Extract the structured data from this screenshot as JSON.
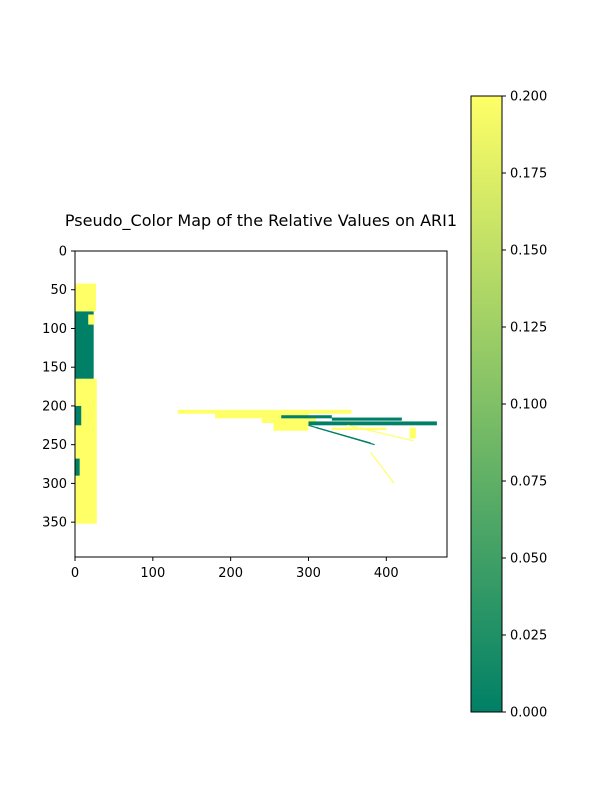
{
  "chart_data": {
    "type": "heatmap",
    "title": "Pseudo_Color Map of the Relative Values on ARI1",
    "xlabel": "",
    "ylabel": "",
    "x_range": [
      0,
      478
    ],
    "y_range": [
      0,
      395
    ],
    "y_inverted": true,
    "x_ticks": [
      "0",
      "100",
      "200",
      "300",
      "400"
    ],
    "x_tick_values": [
      0,
      100,
      200,
      300,
      400
    ],
    "y_ticks": [
      "0",
      "50",
      "100",
      "150",
      "200",
      "250",
      "300",
      "350"
    ],
    "y_tick_values": [
      0,
      50,
      100,
      150,
      200,
      250,
      300,
      350
    ],
    "colormap": "summer",
    "colormap_low": "#008066",
    "colormap_high": "#ffff66",
    "color_range": [
      0.0,
      0.2
    ],
    "colorbar_ticks": [
      "0.000",
      "0.025",
      "0.050",
      "0.075",
      "0.100",
      "0.125",
      "0.150",
      "0.175",
      "0.200"
    ],
    "colorbar_tick_values": [
      0.0,
      0.025,
      0.05,
      0.075,
      0.1,
      0.125,
      0.15,
      0.175,
      0.2
    ],
    "background": "#ffffff",
    "grid": false,
    "regions": [
      {
        "x": [
          0,
          27
        ],
        "y": [
          42,
          78
        ],
        "value": 0.2
      },
      {
        "x": [
          0,
          24
        ],
        "y": [
          78,
          165
        ],
        "value": 0.0
      },
      {
        "x": [
          17,
          25
        ],
        "y": [
          82,
          95
        ],
        "value": 0.2
      },
      {
        "x": [
          0,
          28
        ],
        "y": [
          165,
          352
        ],
        "value": 0.2
      },
      {
        "x": [
          0,
          8
        ],
        "y": [
          200,
          225
        ],
        "value": 0.0
      },
      {
        "x": [
          0,
          6
        ],
        "y": [
          268,
          290
        ],
        "value": 0.0
      },
      {
        "x": [
          132,
          355
        ],
        "y": [
          205,
          210
        ],
        "value": 0.2
      },
      {
        "x": [
          180,
          300
        ],
        "y": [
          210,
          216
        ],
        "value": 0.2
      },
      {
        "x": [
          240,
          310
        ],
        "y": [
          216,
          222
        ],
        "value": 0.2
      },
      {
        "x": [
          255,
          300
        ],
        "y": [
          222,
          232
        ],
        "value": 0.2
      },
      {
        "x": [
          265,
          330
        ],
        "y": [
          212,
          216
        ],
        "value": 0.0
      },
      {
        "x": [
          300,
          465
        ],
        "y": [
          220,
          225
        ],
        "value": 0.0
      },
      {
        "x": [
          330,
          420
        ],
        "y": [
          215,
          219
        ],
        "value": 0.0
      },
      {
        "x": [
          430,
          438
        ],
        "y": [
          228,
          242
        ],
        "value": 0.2
      },
      {
        "x": [
          330,
          400
        ],
        "y": [
          228,
          231
        ],
        "value": 0.2
      }
    ],
    "streaks": [
      {
        "x": [
          300,
          385
        ],
        "y": [
          225,
          250
        ],
        "value": 0.0
      },
      {
        "x": [
          310,
          380
        ],
        "y": [
          228,
          248
        ],
        "value": 0.0
      },
      {
        "x": [
          350,
          435
        ],
        "y": [
          225,
          245
        ],
        "value": 0.2
      },
      {
        "x": [
          380,
          410
        ],
        "y": [
          260,
          300
        ],
        "value": 0.2
      }
    ]
  }
}
